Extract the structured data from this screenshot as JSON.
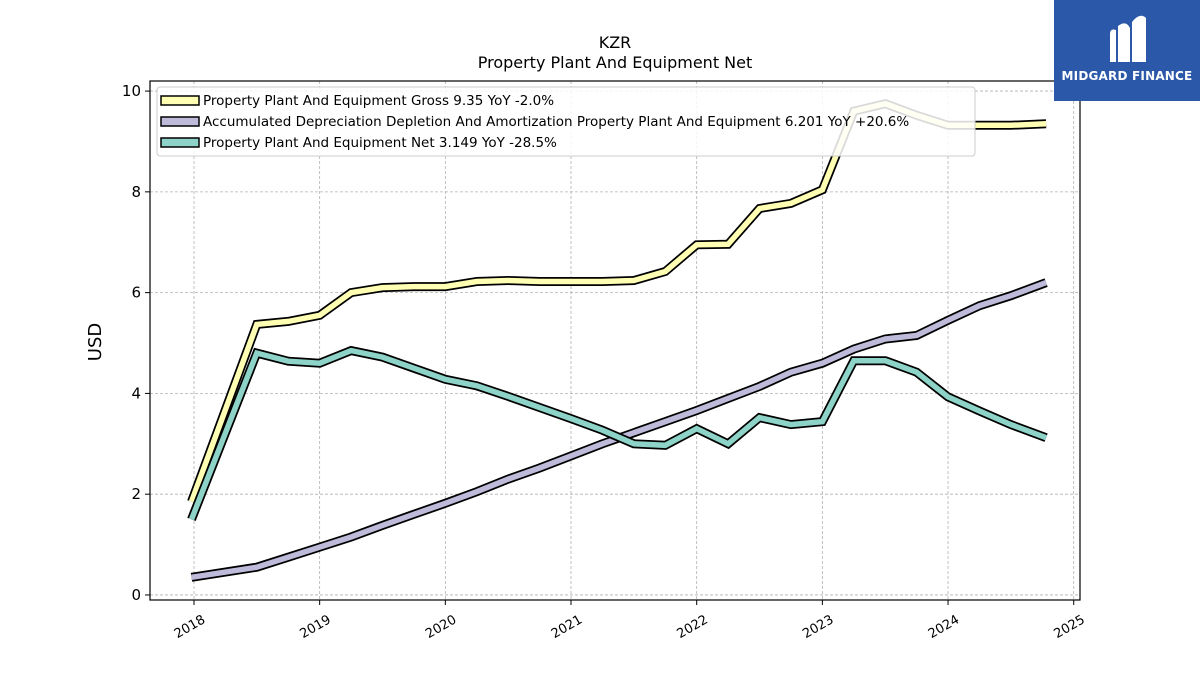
{
  "chart_data": {
    "type": "line",
    "title": "KZR",
    "subtitle": "Property Plant And Equipment Net",
    "xlabel": "",
    "ylabel": "USD",
    "xlim": [
      2017.65,
      2025.05
    ],
    "ylim": [
      -0.1,
      10.2
    ],
    "x_ticks": [
      "2018",
      "2019",
      "2020",
      "2021",
      "2022",
      "2023",
      "2024",
      "2025"
    ],
    "y_ticks": [
      "0",
      "2",
      "4",
      "6",
      "8",
      "10"
    ],
    "grid": true,
    "legend_position": "top-left",
    "x": [
      2017.98,
      2018.5,
      2018.75,
      2019.0,
      2019.25,
      2019.5,
      2019.75,
      2020.0,
      2020.25,
      2020.5,
      2020.75,
      2021.0,
      2021.25,
      2021.5,
      2021.75,
      2022.0,
      2022.25,
      2022.5,
      2022.75,
      2023.0,
      2023.25,
      2023.5,
      2023.75,
      2024.0,
      2024.25,
      2024.5,
      2024.78
    ],
    "series": [
      {
        "name": "Property Plant And Equipment Gross",
        "legend_label": "Property Plant And Equipment Gross  9.35 YoY -2.0%",
        "color": "#ffffb3",
        "values": [
          1.85,
          5.37,
          5.43,
          5.55,
          6.0,
          6.1,
          6.12,
          6.12,
          6.22,
          6.24,
          6.22,
          6.22,
          6.22,
          6.24,
          6.42,
          6.95,
          6.96,
          7.67,
          7.77,
          8.04,
          9.6,
          9.75,
          9.52,
          9.32,
          9.32,
          9.32,
          9.35
        ]
      },
      {
        "name": "Accumulated Depreciation Depletion And Amortization Property Plant And Equipment",
        "legend_label": "Accumulated Depreciation Depletion And Amortization Property Plant And Equipment  6.201 YoY +20.6%",
        "color": "#bebada",
        "values": [
          0.35,
          0.55,
          0.75,
          0.95,
          1.15,
          1.38,
          1.6,
          1.82,
          2.05,
          2.3,
          2.52,
          2.76,
          3.0,
          3.22,
          3.44,
          3.66,
          3.9,
          4.14,
          4.42,
          4.6,
          4.88,
          5.08,
          5.15,
          5.45,
          5.74,
          5.94,
          6.2
        ]
      },
      {
        "name": "Property Plant And Equipment Net",
        "legend_label": "Property Plant And Equipment Net  3.149 YoY -28.5%",
        "color": "#8dd3c7",
        "values": [
          1.5,
          4.8,
          4.64,
          4.6,
          4.85,
          4.72,
          4.5,
          4.28,
          4.15,
          3.94,
          3.72,
          3.5,
          3.27,
          3.0,
          2.97,
          3.3,
          3.0,
          3.52,
          3.38,
          3.44,
          4.65,
          4.65,
          4.42,
          3.93,
          3.65,
          3.38,
          3.12
        ]
      }
    ]
  },
  "logo": {
    "text": "MIDGARD FINANCE"
  }
}
